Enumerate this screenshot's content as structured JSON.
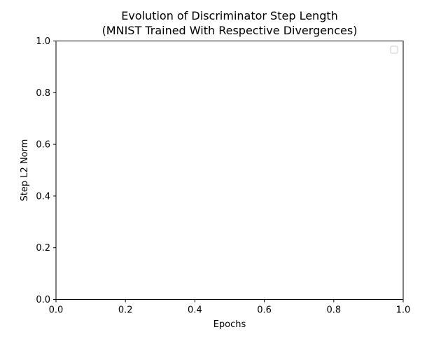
{
  "chart_data": {
    "type": "line",
    "title": "Evolution of Discriminator Step Length",
    "subtitle": "(MNIST Trained With Respective Divergences)",
    "xlabel": "Epochs",
    "ylabel": "Step L2 Norm",
    "xlim": [
      0.0,
      1.0
    ],
    "ylim": [
      0.0,
      1.0
    ],
    "xticks": [
      "0.0",
      "0.2",
      "0.4",
      "0.6",
      "0.8",
      "1.0"
    ],
    "yticks": [
      "0.0",
      "0.2",
      "0.4",
      "0.6",
      "0.8",
      "1.0"
    ],
    "series": [],
    "legend": {
      "placement": "upper-right",
      "entries": []
    },
    "grid": false
  }
}
